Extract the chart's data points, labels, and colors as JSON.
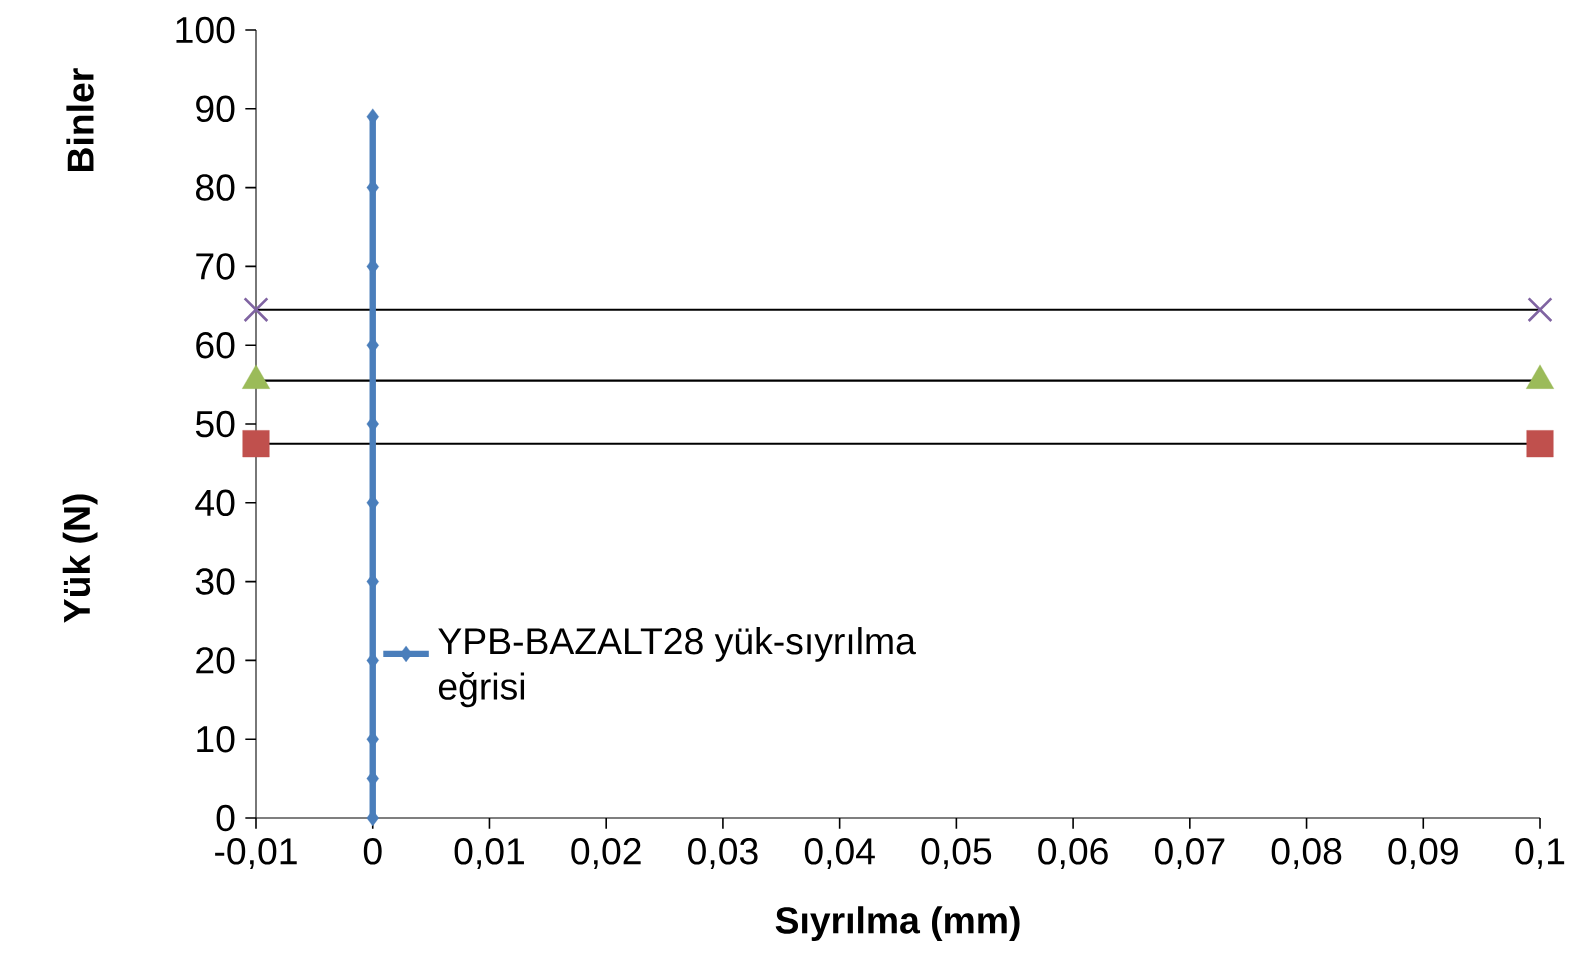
{
  "chart_data": {
    "type": "line",
    "xlabel": "Sıyrılma (mm)",
    "ylabel": "Yük (N)",
    "annotations": [
      "Binler"
    ],
    "xlim": [
      -0.01,
      0.1
    ],
    "ylim": [
      0,
      100
    ],
    "xticks": [
      {
        "value": -0.01,
        "label": "-0,01"
      },
      0,
      {
        "value": 0.01,
        "label": "0,01"
      },
      {
        "value": 0.02,
        "label": "0,02"
      },
      {
        "value": 0.03,
        "label": "0,03"
      },
      {
        "value": 0.04,
        "label": "0,04"
      },
      {
        "value": 0.05,
        "label": "0,05"
      },
      {
        "value": 0.06,
        "label": "0,06"
      },
      {
        "value": 0.07,
        "label": "0,07"
      },
      {
        "value": 0.08,
        "label": "0,08"
      },
      {
        "value": 0.09,
        "label": "0,09"
      },
      {
        "value": 0.1,
        "label": "0,1"
      }
    ],
    "yticks": [
      0,
      10,
      20,
      30,
      40,
      50,
      60,
      70,
      80,
      90,
      100
    ],
    "legend": "left",
    "grid": false,
    "series": [
      {
        "name": "YPB-BAZALT28 yük-sıyrılma eğrisi",
        "marker": "diamond",
        "color": "#4a7ebb",
        "x": [
          0,
          0,
          0,
          0,
          0,
          0,
          0,
          0,
          0,
          0,
          0
        ],
        "values": [
          0,
          5,
          10,
          20,
          30,
          40,
          50,
          60,
          70,
          80,
          89
        ]
      },
      {
        "type": "scatter",
        "marker": "square",
        "color": "#c0504d",
        "x": [
          -0.01,
          0.1
        ],
        "values": [
          47.5,
          47.5
        ]
      },
      {
        "type": "scatter",
        "marker": "triangle",
        "color": "#9bbb59",
        "x": [
          -0.01,
          0.1
        ],
        "values": [
          55.5,
          55.5
        ]
      },
      {
        "type": "scatter",
        "marker": "cross",
        "color": "#8064a2",
        "x": [
          -0.01,
          0.1
        ],
        "values": [
          64.5,
          64.5
        ]
      }
    ],
    "ref_lines": [
      {
        "axis": "y",
        "value": 47.5,
        "color": "#000000"
      },
      {
        "axis": "y",
        "value": 55.5,
        "color": "#000000"
      },
      {
        "axis": "y",
        "value": 64.5,
        "color": "#000000"
      }
    ]
  }
}
